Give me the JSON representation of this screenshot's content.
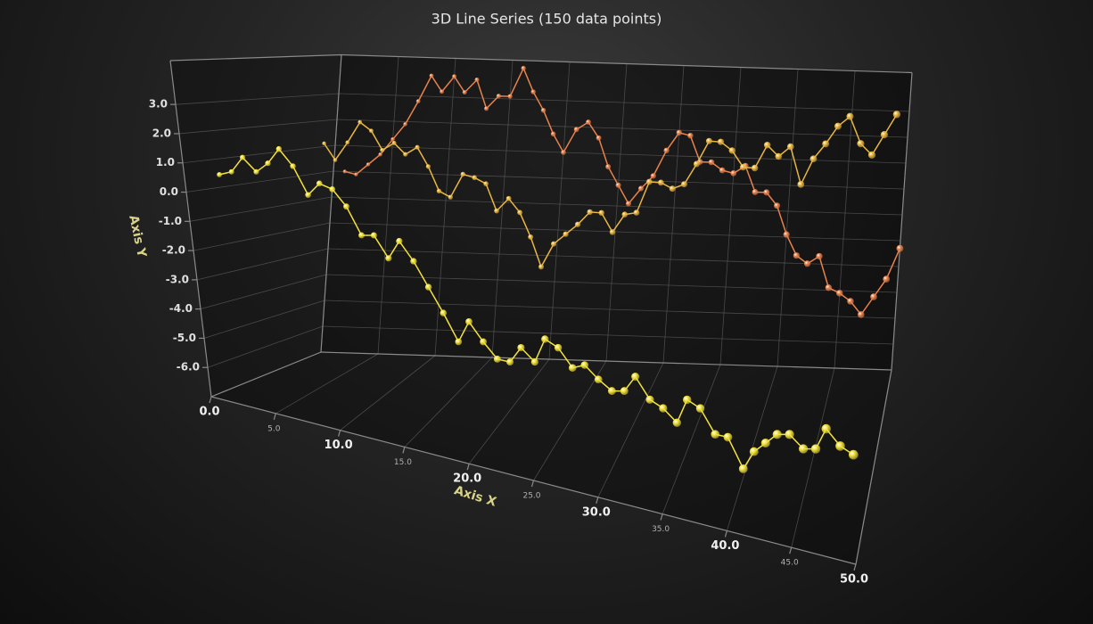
{
  "chart_data": {
    "type": "line",
    "title": "3D Line Series (150 data points)",
    "x_label": "Axis X",
    "y_label": "Axis Y",
    "x": [
      1,
      2,
      3,
      4,
      5,
      6,
      7,
      8,
      9,
      10,
      11,
      12,
      13,
      14,
      15,
      16,
      17,
      18,
      19,
      20,
      21,
      22,
      23,
      24,
      25,
      26,
      27,
      28,
      29,
      30,
      31,
      32,
      33,
      34,
      35,
      36,
      37,
      38,
      39,
      40,
      41,
      42,
      43,
      44,
      45,
      46,
      47,
      48,
      49,
      50
    ],
    "series": [
      {
        "color": "#f2e23a",
        "values": [
          0.6,
          0.8,
          1.4,
          1.0,
          1.4,
          2.0,
          1.5,
          0.6,
          1.1,
          1.0,
          0.5,
          -0.4,
          -0.3,
          -1.0,
          -0.3,
          -0.9,
          -1.7,
          -2.5,
          -3.4,
          -2.6,
          -3.2,
          -3.7,
          -3.7,
          -3.1,
          -3.5,
          -2.6,
          -2.8,
          -3.4,
          -3.2,
          -3.6,
          -3.9,
          -3.8,
          -3.2,
          -3.9,
          -4.1,
          -4.5,
          -3.6,
          -3.8,
          -4.6,
          -4.6,
          -5.6,
          -4.9,
          -4.5,
          -4.1,
          -4.0,
          -4.4,
          -4.3,
          -3.5,
          -4.0,
          -4.2
        ]
      },
      {
        "color": "#e9b640",
        "values": [
          1.2,
          0.6,
          1.3,
          2.1,
          1.8,
          1.1,
          1.4,
          1.0,
          1.3,
          0.6,
          -0.3,
          -0.5,
          0.4,
          0.3,
          0.1,
          -0.9,
          -0.4,
          -0.9,
          -1.8,
          -2.9,
          -2.0,
          -1.6,
          -1.2,
          -0.7,
          -0.7,
          -1.4,
          -0.7,
          -0.6,
          0.6,
          0.6,
          0.4,
          0.6,
          1.4,
          2.3,
          2.3,
          2.0,
          1.4,
          1.4,
          2.3,
          1.9,
          2.3,
          0.9,
          1.9,
          2.5,
          3.2,
          3.6,
          2.6,
          2.2,
          3.0,
          3.8
        ]
      },
      {
        "color": "#e8824c",
        "values": [
          0.0,
          -0.1,
          0.3,
          0.7,
          1.3,
          1.9,
          2.8,
          3.8,
          3.2,
          3.8,
          3.2,
          3.7,
          2.6,
          3.1,
          3.1,
          4.2,
          3.3,
          2.6,
          1.7,
          1.0,
          1.9,
          2.2,
          1.6,
          0.5,
          -0.2,
          -0.9,
          -0.3,
          0.2,
          1.2,
          1.9,
          1.8,
          0.8,
          0.8,
          0.5,
          0.4,
          0.7,
          -0.3,
          -0.3,
          -0.8,
          -1.9,
          -2.7,
          -3.0,
          -2.7,
          -3.9,
          -4.1,
          -4.4,
          -4.9,
          -4.2,
          -3.5,
          -2.3
        ]
      }
    ],
    "xlim": [
      0,
      50
    ],
    "xticks": [
      {
        "value": 0,
        "label": "0.0"
      },
      {
        "value": 5,
        "label": "5.0"
      },
      {
        "value": 10,
        "label": "10.0"
      },
      {
        "value": 15,
        "label": "15.0"
      },
      {
        "value": 20,
        "label": "20.0"
      },
      {
        "value": 25,
        "label": "25.0"
      },
      {
        "value": 30,
        "label": "30.0"
      },
      {
        "value": 35,
        "label": "35.0"
      },
      {
        "value": 40,
        "label": "40.0"
      },
      {
        "value": 45,
        "label": "45.0"
      },
      {
        "value": 50,
        "label": "50.0"
      }
    ],
    "ylim": [
      -7,
      4.5
    ],
    "yticks": [
      {
        "value": -6,
        "label": "-6.0"
      },
      {
        "value": -5,
        "label": "-5.0"
      },
      {
        "value": -4,
        "label": "-4.0"
      },
      {
        "value": -3,
        "label": "-3.0"
      },
      {
        "value": -2,
        "label": "-2.0"
      },
      {
        "value": -1,
        "label": "-1.0"
      },
      {
        "value": 0,
        "label": "0.0"
      },
      {
        "value": 1,
        "label": "1.0"
      },
      {
        "value": 2,
        "label": "2.0"
      },
      {
        "value": 3,
        "label": "3.0"
      }
    ],
    "grid": true
  }
}
